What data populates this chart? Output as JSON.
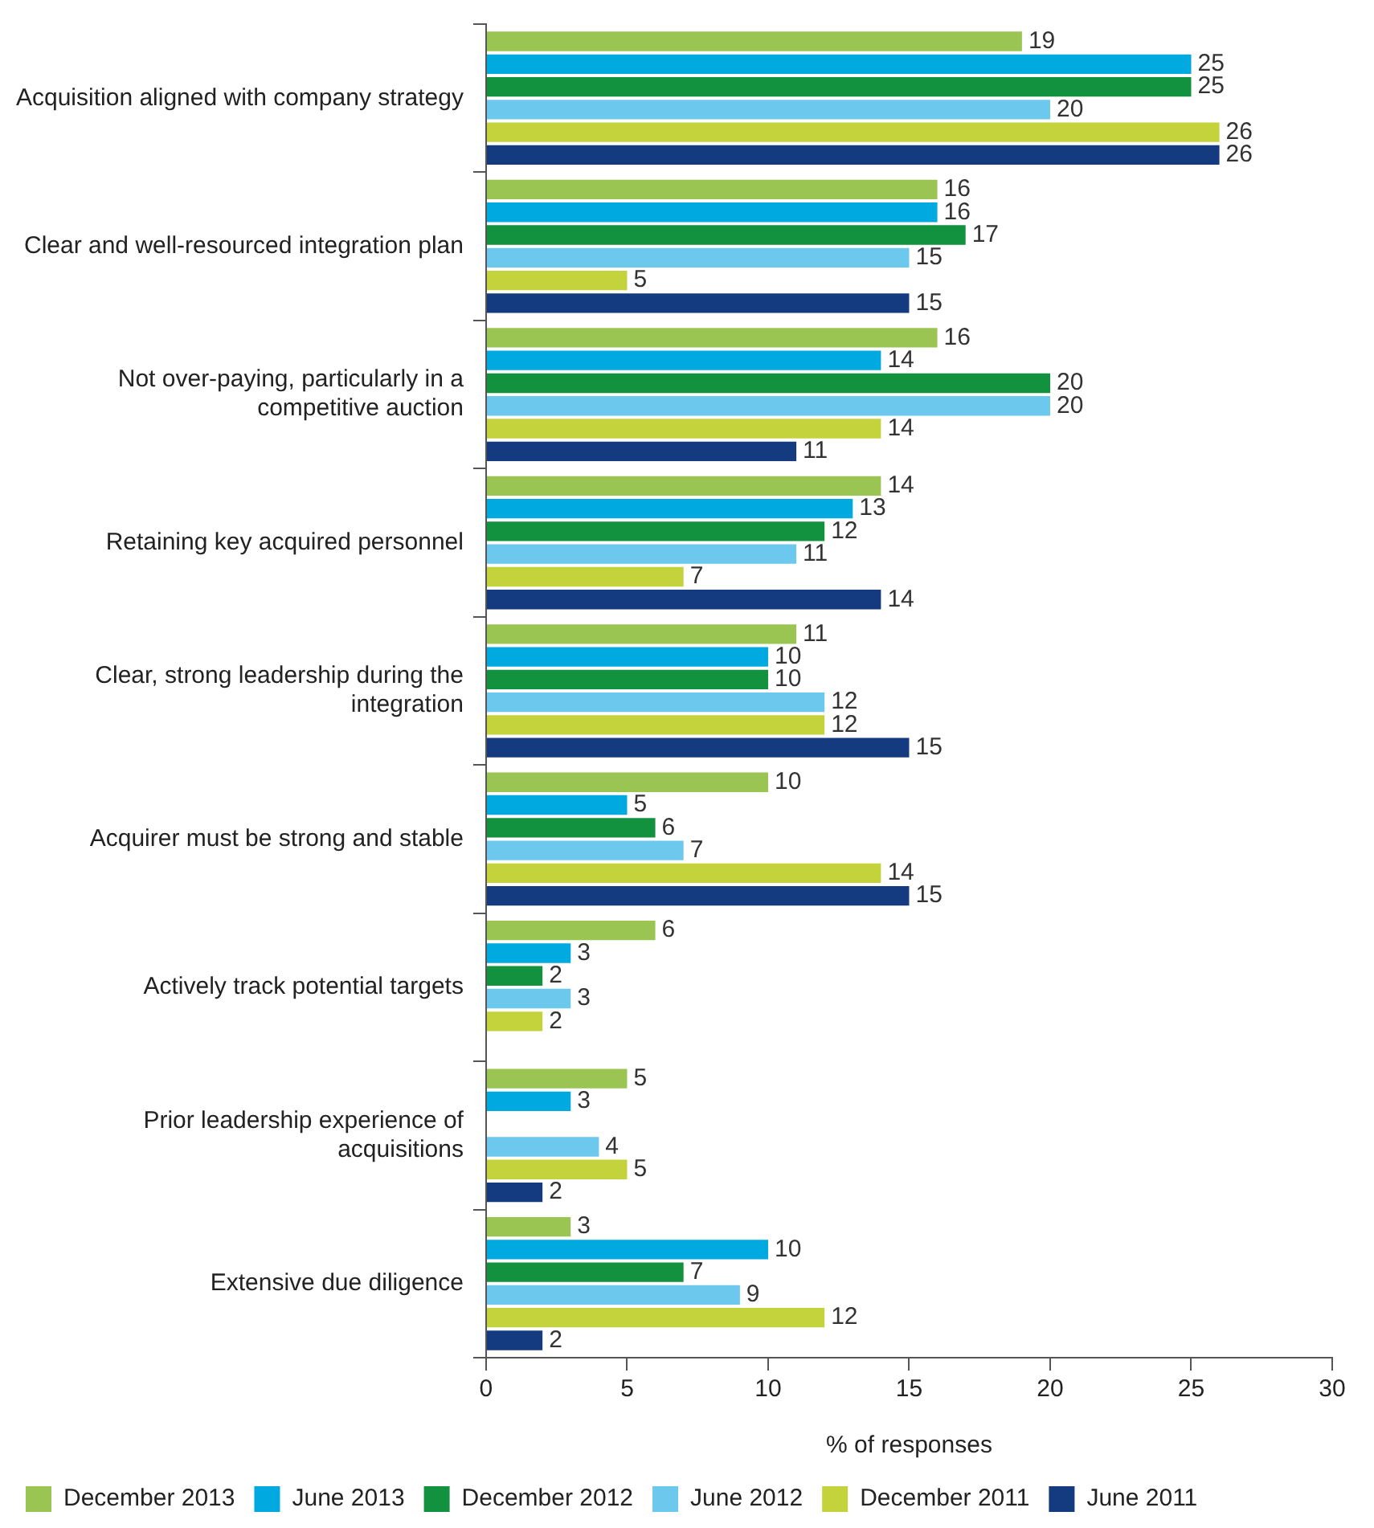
{
  "chart_data": {
    "type": "bar",
    "orientation": "horizontal",
    "xlabel": "% of responses",
    "categories": [
      "Acquisition aligned with company strategy",
      "Clear and well-resourced integration plan",
      "Not over-paying, particularly in a competitive auction",
      "Retaining key acquired personnel",
      "Clear, strong leadership during the integration",
      "Acquirer must be strong and stable",
      "Actively track potential targets",
      "Prior leadership experience of acquisitions",
      "Extensive due diligence"
    ],
    "series": [
      {
        "name": "December 2013",
        "color": "#9bc553",
        "values": [
          19,
          16,
          16,
          14,
          11,
          10,
          6,
          5,
          3
        ]
      },
      {
        "name": "June 2013",
        "color": "#00a9e0",
        "values": [
          25,
          16,
          14,
          13,
          10,
          5,
          3,
          3,
          10
        ]
      },
      {
        "name": "December 2012",
        "color": "#12913e",
        "values": [
          25,
          17,
          20,
          12,
          10,
          6,
          2,
          null,
          7
        ]
      },
      {
        "name": "June 2012",
        "color": "#6dc8ee",
        "values": [
          20,
          15,
          20,
          11,
          12,
          7,
          3,
          4,
          9
        ]
      },
      {
        "name": "December 2011",
        "color": "#c4d33c",
        "values": [
          26,
          5,
          14,
          7,
          12,
          14,
          2,
          5,
          12
        ]
      },
      {
        "name": "June 2011",
        "color": "#143a7f",
        "values": [
          26,
          15,
          11,
          14,
          15,
          15,
          null,
          2,
          2
        ]
      }
    ],
    "xlim": [
      0,
      30
    ],
    "xticks": [
      0,
      5,
      10,
      15,
      20,
      25,
      30
    ],
    "grid": false,
    "legend": "bottom",
    "data_labels": true
  }
}
